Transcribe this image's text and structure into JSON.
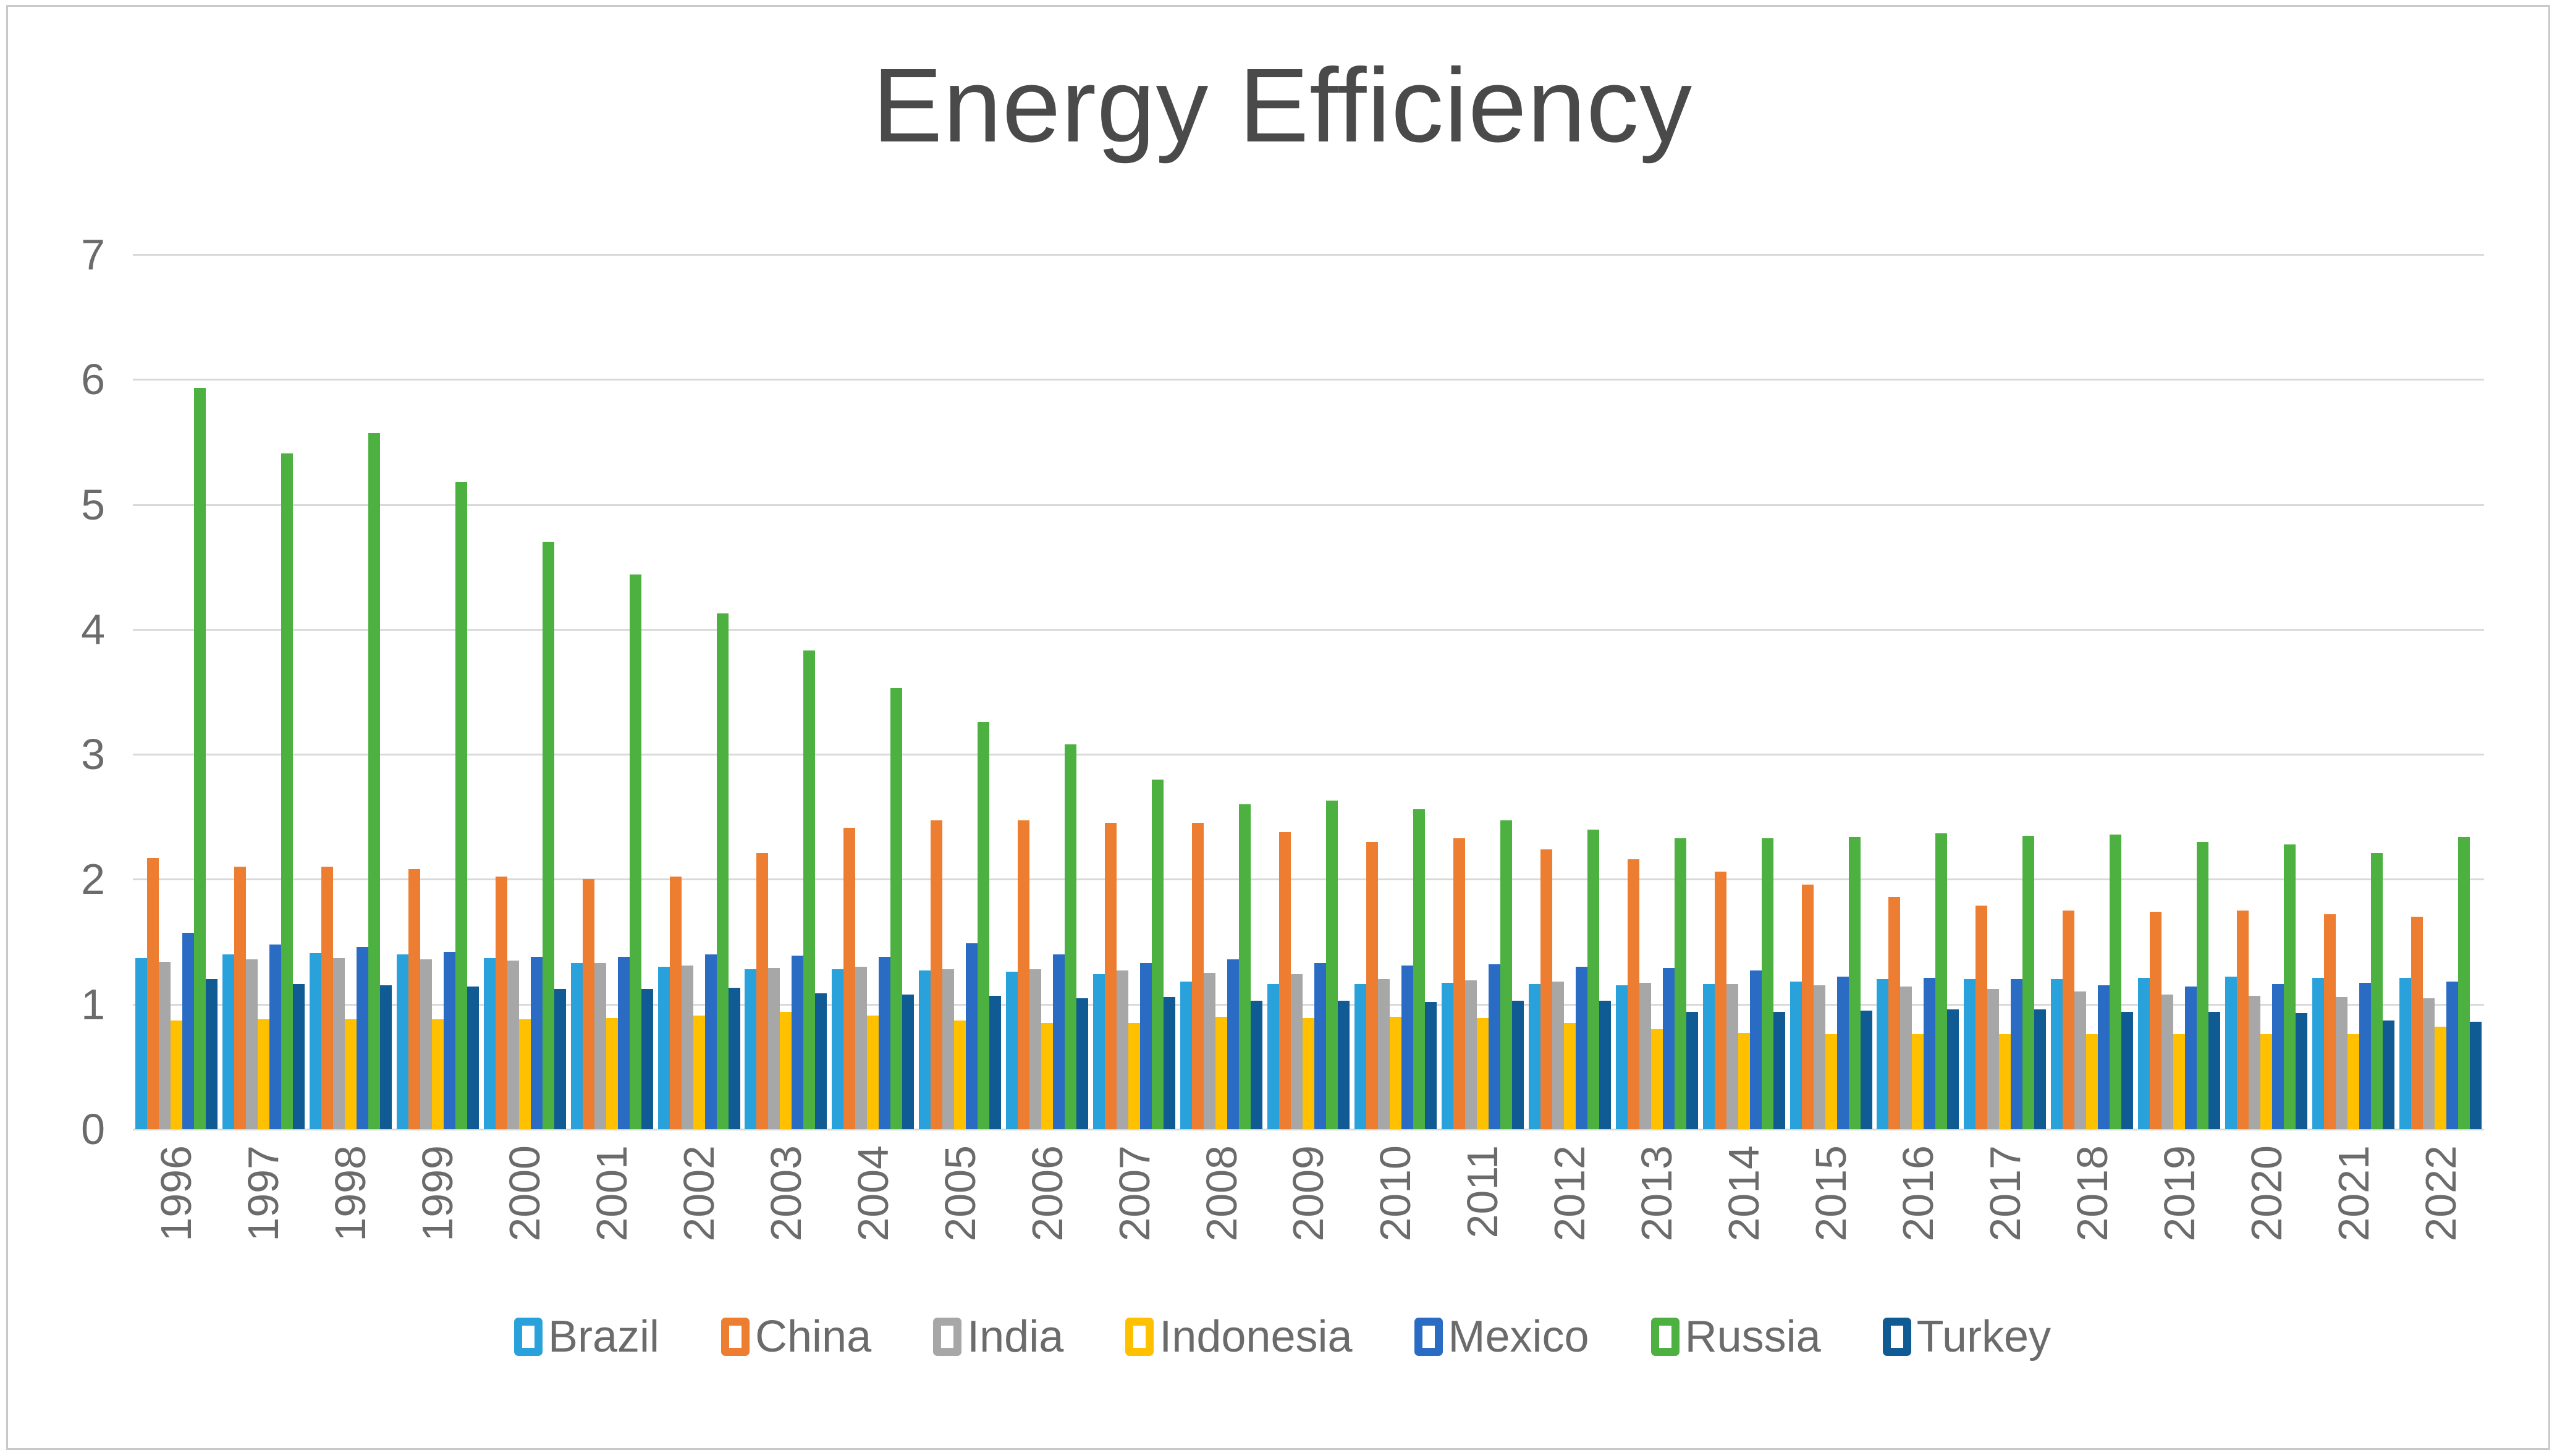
{
  "title": "Energy Efficiency",
  "chart_data": {
    "type": "bar",
    "title": "Energy Efficiency",
    "categories": [
      "1996",
      "1997",
      "1998",
      "1999",
      "2000",
      "2001",
      "2002",
      "2003",
      "2004",
      "2005",
      "2006",
      "2007",
      "2008",
      "2009",
      "2010",
      "2011",
      "2012",
      "2013",
      "2014",
      "2015",
      "2016",
      "2017",
      "2018",
      "2019",
      "2020",
      "2021",
      "2022"
    ],
    "series": [
      {
        "name": "Brazil",
        "color": "#29A2DC",
        "values": [
          1.37,
          1.4,
          1.41,
          1.4,
          1.37,
          1.33,
          1.3,
          1.28,
          1.28,
          1.27,
          1.26,
          1.24,
          1.18,
          1.16,
          1.16,
          1.17,
          1.16,
          1.15,
          1.16,
          1.18,
          1.2,
          1.2,
          1.2,
          1.21,
          1.22,
          1.21,
          1.21
        ]
      },
      {
        "name": "China",
        "color": "#ED7D31",
        "values": [
          2.17,
          2.1,
          2.1,
          2.08,
          2.02,
          2.0,
          2.02,
          2.21,
          2.41,
          2.47,
          2.47,
          2.45,
          2.45,
          2.38,
          2.3,
          2.33,
          2.24,
          2.16,
          2.06,
          1.96,
          1.86,
          1.79,
          1.75,
          1.74,
          1.75,
          1.72,
          1.7
        ]
      },
      {
        "name": "India",
        "color": "#A7A7A7",
        "values": [
          1.34,
          1.36,
          1.37,
          1.36,
          1.35,
          1.33,
          1.31,
          1.29,
          1.3,
          1.28,
          1.28,
          1.27,
          1.25,
          1.24,
          1.2,
          1.19,
          1.18,
          1.17,
          1.16,
          1.15,
          1.14,
          1.12,
          1.1,
          1.08,
          1.07,
          1.06,
          1.05
        ]
      },
      {
        "name": "Indonesia",
        "color": "#FFC000",
        "values": [
          0.87,
          0.88,
          0.88,
          0.88,
          0.88,
          0.89,
          0.91,
          0.94,
          0.91,
          0.87,
          0.85,
          0.85,
          0.9,
          0.89,
          0.9,
          0.89,
          0.85,
          0.8,
          0.77,
          0.76,
          0.76,
          0.76,
          0.76,
          0.76,
          0.76,
          0.76,
          0.82
        ]
      },
      {
        "name": "Mexico",
        "color": "#2A6BC4",
        "values": [
          1.57,
          1.48,
          1.46,
          1.42,
          1.38,
          1.38,
          1.4,
          1.39,
          1.38,
          1.49,
          1.4,
          1.33,
          1.36,
          1.33,
          1.31,
          1.32,
          1.3,
          1.29,
          1.27,
          1.22,
          1.21,
          1.2,
          1.15,
          1.14,
          1.16,
          1.17,
          1.18
        ]
      },
      {
        "name": "Russia",
        "color": "#4CB140",
        "values": [
          5.93,
          5.41,
          5.57,
          5.18,
          4.7,
          4.44,
          4.13,
          3.83,
          3.53,
          3.26,
          3.08,
          2.8,
          2.6,
          2.63,
          2.56,
          2.47,
          2.4,
          2.33,
          2.33,
          2.34,
          2.37,
          2.35,
          2.36,
          2.3,
          2.28,
          2.21,
          2.34
        ]
      },
      {
        "name": "Turkey",
        "color": "#105B94",
        "values": [
          1.2,
          1.16,
          1.15,
          1.14,
          1.12,
          1.12,
          1.13,
          1.09,
          1.08,
          1.07,
          1.05,
          1.06,
          1.03,
          1.03,
          1.02,
          1.03,
          1.03,
          0.94,
          0.94,
          0.95,
          0.96,
          0.96,
          0.94,
          0.94,
          0.93,
          0.87,
          0.86
        ]
      }
    ],
    "ylim": [
      0,
      7
    ],
    "y_ticks": [
      0,
      1,
      2,
      3,
      4,
      5,
      6,
      7
    ],
    "grid": true,
    "legend_position": "bottom",
    "xlabel": "",
    "ylabel": ""
  },
  "colors": {
    "grid": "#D9D9D9",
    "axis_text": "#6B6B6B",
    "title_text": "#4A4A4A",
    "legend_text": "#6B6B6B",
    "frame_border": "#C9C9C9",
    "background": "#FFFFFF"
  }
}
